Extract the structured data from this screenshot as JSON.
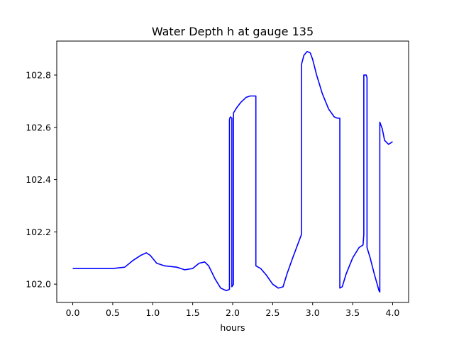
{
  "chart_data": {
    "type": "line",
    "title": "Water Depth h at gauge 135",
    "xlabel": "hours",
    "ylabel": "",
    "xlim": [
      -0.2,
      4.2
    ],
    "ylim": [
      101.93,
      102.93
    ],
    "xticks": [
      0.0,
      0.5,
      1.0,
      1.5,
      2.0,
      2.5,
      3.0,
      3.5,
      4.0
    ],
    "xtick_labels": [
      "0.0",
      "0.5",
      "1.0",
      "1.5",
      "2.0",
      "2.5",
      "3.0",
      "3.5",
      "4.0"
    ],
    "yticks": [
      102.0,
      102.2,
      102.4,
      102.6,
      102.8
    ],
    "ytick_labels": [
      "102.0",
      "102.2",
      "102.4",
      "102.6",
      "102.8"
    ],
    "grid": false,
    "series": [
      {
        "color": "#0000ff",
        "x": [
          0.0,
          0.5,
          0.65,
          0.75,
          0.85,
          0.92,
          0.97,
          1.05,
          1.15,
          1.3,
          1.4,
          1.5,
          1.58,
          1.65,
          1.7,
          1.78,
          1.85,
          1.92,
          1.96,
          1.96,
          1.97,
          1.99,
          1.99,
          2.01,
          2.01,
          2.05,
          2.1,
          2.17,
          2.22,
          2.29,
          2.29,
          2.35,
          2.42,
          2.5,
          2.57,
          2.63,
          2.68,
          2.75,
          2.86,
          2.86,
          2.89,
          2.93,
          2.97,
          3.0,
          3.05,
          3.12,
          3.2,
          3.27,
          3.31,
          3.34,
          3.34,
          3.37,
          3.42,
          3.5,
          3.58,
          3.63,
          3.64,
          3.64,
          3.67,
          3.68,
          3.68,
          3.72,
          3.77,
          3.83,
          3.84,
          3.84,
          3.87,
          3.9,
          3.95,
          4.0
        ],
        "y": [
          102.06,
          102.06,
          102.065,
          102.09,
          102.11,
          102.12,
          102.11,
          102.08,
          102.07,
          102.065,
          102.055,
          102.06,
          102.08,
          102.085,
          102.07,
          102.02,
          101.985,
          101.975,
          101.98,
          102.63,
          102.64,
          102.635,
          101.99,
          102.0,
          102.655,
          102.675,
          102.695,
          102.715,
          102.72,
          102.72,
          102.07,
          102.06,
          102.035,
          102.0,
          101.985,
          101.99,
          102.04,
          102.1,
          102.19,
          102.84,
          102.875,
          102.89,
          102.885,
          102.86,
          102.8,
          102.73,
          102.67,
          102.64,
          102.635,
          102.635,
          101.985,
          101.99,
          102.04,
          102.1,
          102.14,
          102.15,
          102.19,
          102.8,
          102.8,
          102.79,
          102.14,
          102.1,
          102.04,
          101.975,
          101.97,
          102.62,
          102.595,
          102.55,
          102.535,
          102.545
        ]
      }
    ]
  }
}
